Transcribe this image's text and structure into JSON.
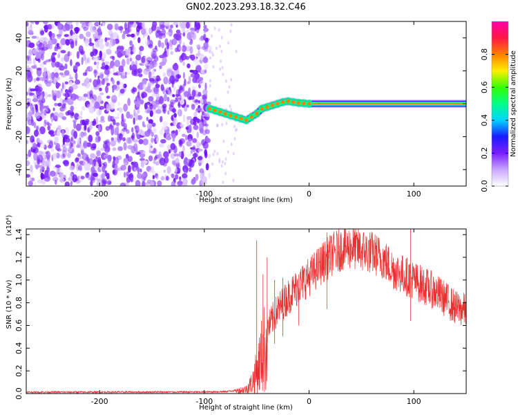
{
  "title": "GN02.2023.293.18.32.C46",
  "chart_data": [
    {
      "type": "heatmap",
      "title": "GN02.2023.293.18.32.C46",
      "xlabel": "Height of straight line (km)",
      "ylabel": "Frequency (Hz)",
      "xlim": [
        -270,
        150
      ],
      "ylim": [
        -50,
        50
      ],
      "x_ticks": [
        -200,
        -100,
        0,
        100
      ],
      "y_ticks": [
        -40,
        -20,
        0,
        20,
        40
      ],
      "noise_region": [
        -270,
        -95
      ],
      "noise_density": "dense purple speckle",
      "ridge": {
        "x": [
          -95,
          -90,
          -85,
          -80,
          -75,
          -70,
          -65,
          -60,
          -55,
          -50,
          -45,
          -40,
          -35,
          -30,
          -25,
          -20,
          -15,
          -10,
          -5,
          0,
          20,
          40,
          60,
          80,
          85,
          100,
          120,
          150
        ],
        "y": [
          -3,
          -4,
          -5,
          -6,
          -7,
          -8,
          -9,
          -10,
          -8,
          -6,
          -3,
          -2,
          -1,
          0,
          1,
          1.5,
          1,
          0.5,
          0.3,
          0,
          0,
          0,
          0,
          0,
          0,
          0,
          0,
          0
        ]
      },
      "colorbar": {
        "label": "Normalized spectral amplitude",
        "range": [
          0.0,
          1.0
        ],
        "ticks": [
          0.0,
          0.2,
          0.4,
          0.6,
          0.8
        ],
        "colors": [
          "#ffffff",
          "#c9a6ff",
          "#7a1fff",
          "#1a1aff",
          "#00d4ff",
          "#00ff88",
          "#33ff00",
          "#ffee00",
          "#ff7f00",
          "#ff1744",
          "#ff00aa"
        ]
      },
      "grid": false,
      "legend": "none"
    },
    {
      "type": "line",
      "xlabel": "Height of straight line (km)",
      "ylabel": "SNR (10 * v/v)",
      "y_multiplier": "(x10⁴)",
      "xlim": [
        -270,
        150
      ],
      "ylim": [
        0,
        1.45
      ],
      "x_ticks": [
        -200,
        -100,
        0,
        100
      ],
      "y_ticks": [
        0.0,
        0.2,
        0.4,
        0.6,
        0.8,
        1.0,
        1.2,
        1.4
      ],
      "color": "#e83030",
      "series": [
        {
          "name": "",
          "x": [
            -270,
            -240,
            -200,
            -150,
            -100,
            -80,
            -70,
            -60,
            -55,
            -50,
            -45,
            -40,
            -35,
            -30,
            -20,
            -10,
            0,
            10,
            20,
            30,
            40,
            50,
            60,
            70,
            80,
            90,
            100,
            110,
            120,
            130,
            140,
            150
          ],
          "y": [
            0.015,
            0.015,
            0.015,
            0.016,
            0.016,
            0.02,
            0.03,
            0.05,
            0.12,
            0.25,
            0.45,
            0.6,
            0.7,
            0.78,
            0.9,
            1.0,
            1.08,
            1.18,
            1.27,
            1.33,
            1.35,
            1.32,
            1.3,
            1.25,
            1.15,
            1.1,
            1.05,
            1.0,
            0.95,
            0.88,
            0.8,
            0.78
          ]
        }
      ],
      "spikes": [
        {
          "x": -50,
          "y": 1.35
        },
        {
          "x": -44,
          "y": 1.05
        },
        {
          "x": -40,
          "y": 1.2
        },
        {
          "x": -33,
          "y": 1.0
        },
        {
          "x": -25,
          "y": 1.02
        },
        {
          "x": -10,
          "y": 1.05
        },
        {
          "x": 17,
          "y": 1.42
        },
        {
          "x": 97,
          "y": 1.45
        }
      ],
      "grid": false,
      "legend": "none"
    }
  ]
}
